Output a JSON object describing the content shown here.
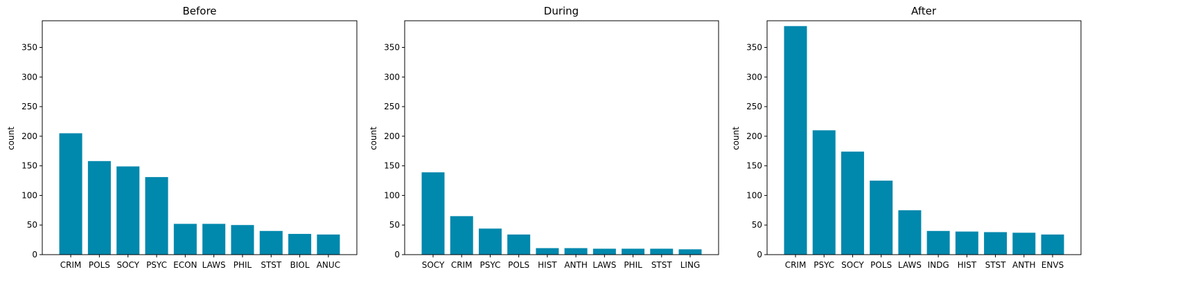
{
  "bar_color": "#0088ad",
  "chart_data": [
    {
      "type": "bar",
      "title": "Before",
      "xlabel": "",
      "ylabel": "count",
      "ylim": [
        0,
        395
      ],
      "yticks": [
        0,
        50,
        100,
        150,
        200,
        250,
        300,
        350
      ],
      "categories": [
        "CRIM",
        "POLS",
        "SOCY",
        "PSYC",
        "ECON",
        "LAWS",
        "PHIL",
        "STST",
        "BIOL",
        "ANUC"
      ],
      "values": [
        205,
        158,
        149,
        131,
        52,
        52,
        50,
        40,
        35,
        34
      ]
    },
    {
      "type": "bar",
      "title": "During",
      "xlabel": "",
      "ylabel": "count",
      "ylim": [
        0,
        395
      ],
      "yticks": [
        0,
        50,
        100,
        150,
        200,
        250,
        300,
        350
      ],
      "categories": [
        "SOCY",
        "CRIM",
        "PSYC",
        "POLS",
        "HIST",
        "ANTH",
        "LAWS",
        "PHIL",
        "STST",
        "LING"
      ],
      "values": [
        139,
        65,
        44,
        34,
        11,
        11,
        10,
        10,
        10,
        9
      ]
    },
    {
      "type": "bar",
      "title": "After",
      "xlabel": "",
      "ylabel": "count",
      "ylim": [
        0,
        395
      ],
      "yticks": [
        0,
        50,
        100,
        150,
        200,
        250,
        300,
        350
      ],
      "categories": [
        "CRIM",
        "PSYC",
        "SOCY",
        "POLS",
        "LAWS",
        "INDG",
        "HIST",
        "STST",
        "ANTH",
        "ENVS"
      ],
      "values": [
        386,
        210,
        174,
        125,
        75,
        40,
        39,
        38,
        37,
        34
      ]
    }
  ]
}
